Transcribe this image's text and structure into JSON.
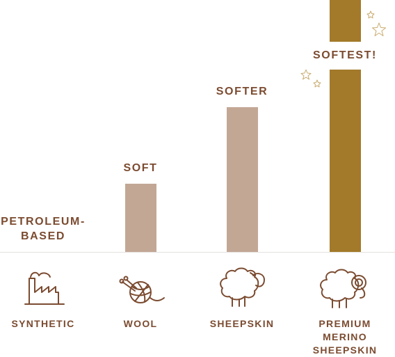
{
  "chart_data": {
    "type": "bar",
    "categories": [
      "SYNTHETIC",
      "WOOL",
      "SHEEPSKIN",
      "PREMIUM MERINO SHEEPSKIN"
    ],
    "values": [
      0,
      98,
      208,
      362
    ],
    "bar_labels": [
      "PETROLEUM-BASED",
      "SOFT",
      "SOFTER",
      "SOFTEST!"
    ],
    "colors": [
      "#c3a795",
      "#c3a795",
      "#c3a795",
      "#a37a2a"
    ],
    "ylim": [
      0,
      362
    ]
  }
}
